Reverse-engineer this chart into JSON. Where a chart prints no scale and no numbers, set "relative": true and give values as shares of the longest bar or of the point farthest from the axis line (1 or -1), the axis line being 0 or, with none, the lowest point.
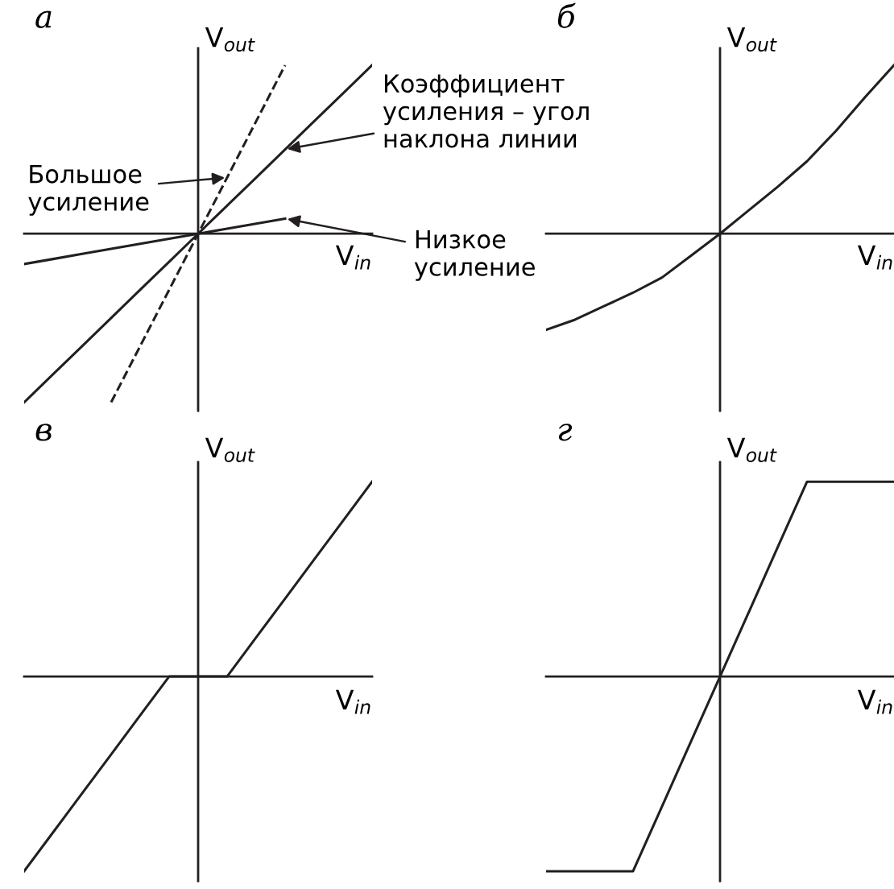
{
  "chart_data": [
    {
      "type": "line",
      "title": "а",
      "xlabel": "V$_{in}$",
      "ylabel": "V$_{out}$",
      "relative": true,
      "tick_labels": false,
      "categories": [
        null,
        null,
        null,
        null,
        null,
        null,
        null,
        null,
        null,
        null,
        null,
        null,
        null
      ],
      "series": [
        {
          "color": "#231f20",
          "line_style": "solid",
          "values": [
            -1,
            -0.833,
            -0.667,
            -0.5,
            -0.333,
            -0.167,
            0,
            0.167,
            0.333,
            0.5,
            0.667,
            0.833,
            1
          ]
        },
        {
          "color": "#231f20",
          "line_style": "dashed",
          "values": [
            null,
            null,
            null,
            -1,
            -0.667,
            -0.333,
            0,
            0.333,
            0.667,
            1,
            null,
            null,
            null
          ]
        },
        {
          "color": "#231f20",
          "line_style": "solid",
          "values": [
            -0.18,
            -0.15,
            -0.12,
            -0.09,
            -0.06,
            -0.03,
            0,
            0.03,
            0.06,
            0.09,
            null,
            null,
            null
          ]
        }
      ],
      "annotations": [
        "Коэффициент\nусиления – угол\nнаклона линии",
        "Большое\nусиление",
        "Низкое\nусиление"
      ]
    },
    {
      "type": "line",
      "title": "б",
      "xlabel": "V$_{in}$",
      "ylabel": "V$_{out}$",
      "relative": true,
      "tick_labels": false,
      "categories": [
        null,
        null,
        null,
        null,
        null,
        null,
        null,
        null,
        null,
        null,
        null,
        null,
        null
      ],
      "series": [
        {
          "color": "#231f20",
          "line_style": "solid",
          "values": [
            -0.57,
            -0.51,
            -0.43,
            -0.35,
            -0.26,
            -0.13,
            0,
            0.14,
            0.28,
            0.43,
            0.61,
            0.81,
            1
          ]
        }
      ]
    },
    {
      "type": "line",
      "title": "в",
      "xlabel": "V$_{in}$",
      "ylabel": "V$_{out}$",
      "relative": true,
      "tick_labels": false,
      "categories": [
        null,
        null,
        null,
        null,
        null,
        null,
        null,
        null,
        null,
        null,
        null,
        null,
        null
      ],
      "series": [
        {
          "color": "#231f20",
          "line_style": "solid",
          "values": [
            -1,
            -0.8,
            -0.6,
            -0.4,
            -0.2,
            0,
            0,
            0,
            0.2,
            0.4,
            0.6,
            0.8,
            1
          ]
        }
      ]
    },
    {
      "type": "line",
      "title": "г",
      "xlabel": "V$_{in}$",
      "ylabel": "V$_{out}$",
      "relative": true,
      "tick_labels": false,
      "categories": [
        null,
        null,
        null,
        null,
        null,
        null,
        null,
        null,
        null,
        null,
        null,
        null,
        null
      ],
      "series": [
        {
          "color": "#231f20",
          "line_style": "solid",
          "values": [
            -1,
            -1,
            -1,
            -1,
            -0.667,
            -0.333,
            0,
            0.333,
            0.667,
            1,
            1,
            1,
            1
          ]
        }
      ]
    }
  ]
}
